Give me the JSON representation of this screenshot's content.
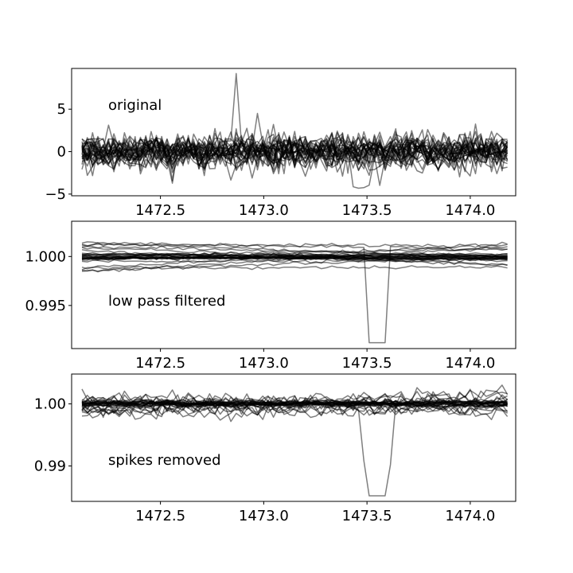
{
  "chart_data": [
    {
      "type": "line",
      "annotation": "original",
      "xlim": [
        1472.07,
        1474.22
      ],
      "ylim": [
        -5.2,
        9.8
      ],
      "xticks": [
        1472.5,
        1473.0,
        1473.5,
        1474.0
      ],
      "xtick_labels": [
        "1472.5",
        "1473.0",
        "1473.5",
        "1474.0"
      ],
      "yticks": [
        -5,
        0,
        5
      ],
      "ytick_labels": [
        "−5",
        "0",
        "5"
      ],
      "series_count": 30,
      "x_range": [
        1472.12,
        1474.18
      ],
      "noise_amplitude": 1.1,
      "features": [
        {
          "x": 1472.86,
          "y": 9.2
        },
        {
          "x": 1472.96,
          "y": 4.5
        },
        {
          "x": 1473.05,
          "y": 3.2
        },
        {
          "x": 1473.47,
          "y": -4.4
        }
      ],
      "grid": false
    },
    {
      "type": "line",
      "annotation": "low pass filtered",
      "xlim": [
        1472.07,
        1474.22
      ],
      "ylim": [
        0.9906,
        1.0036
      ],
      "xticks": [
        1472.5,
        1473.0,
        1473.5,
        1474.0
      ],
      "xtick_labels": [
        "1472.5",
        "1473.0",
        "1473.5",
        "1474.0"
      ],
      "yticks": [
        0.995,
        1.0
      ],
      "ytick_labels": [
        "0.995",
        "1.000"
      ],
      "series_count": 30,
      "x_range": [
        1472.12,
        1474.18
      ],
      "features": [
        {
          "x": 1473.52,
          "y": 0.9912
        },
        {
          "x": 1473.58,
          "y": 0.9912
        }
      ],
      "grid": false
    },
    {
      "type": "line",
      "annotation": "spikes removed",
      "xlim": [
        1472.07,
        1474.22
      ],
      "ylim": [
        0.9843,
        1.0048
      ],
      "xticks": [
        1472.5,
        1473.0,
        1473.5,
        1474.0
      ],
      "xtick_labels": [
        "1472.5",
        "1473.0",
        "1473.5",
        "1474.0"
      ],
      "yticks": [
        0.99,
        1.0
      ],
      "ytick_labels": [
        "0.99",
        "1.00"
      ],
      "series_count": 30,
      "x_range": [
        1472.12,
        1474.18
      ],
      "features": [
        {
          "x": 1473.52,
          "y": 0.9852
        },
        {
          "x": 1473.58,
          "y": 0.9862
        }
      ],
      "grid": false
    }
  ],
  "colors": {
    "line": "#000000",
    "line_opacity": 0.5,
    "background": "#ffffff"
  }
}
